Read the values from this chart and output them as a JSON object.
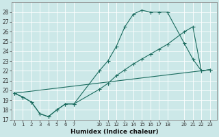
{
  "xlabel": "Humidex (Indice chaleur)",
  "bg_color": "#cce8e8",
  "grid_color": "#ffffff",
  "line_color": "#1a6b5e",
  "line1_x": [
    0,
    1,
    2,
    3,
    4,
    5,
    6,
    7,
    10,
    11,
    12,
    13,
    14,
    15,
    16,
    17,
    18,
    20,
    21,
    22,
    23
  ],
  "line1_y": [
    19.7,
    19.3,
    18.8,
    17.6,
    17.3,
    18.0,
    18.6,
    18.6,
    22.0,
    23.0,
    24.5,
    26.5,
    27.8,
    28.2,
    28.0,
    28.0,
    28.0,
    24.8,
    23.2,
    22.0,
    22.1
  ],
  "line2_x": [
    0,
    1,
    2,
    3,
    4,
    5,
    6,
    7,
    10,
    11,
    12,
    13,
    14,
    15,
    16,
    17,
    18,
    20,
    21,
    22,
    23
  ],
  "line2_y": [
    19.7,
    19.3,
    18.8,
    17.6,
    17.3,
    18.0,
    18.6,
    18.6,
    20.1,
    20.7,
    21.5,
    22.1,
    22.7,
    23.2,
    23.7,
    24.2,
    24.7,
    26.0,
    26.5,
    22.0,
    22.1
  ],
  "line3_x": [
    0,
    23
  ],
  "line3_y": [
    19.7,
    22.1
  ],
  "xtick_positions": [
    0,
    1,
    2,
    3,
    4,
    5,
    6,
    7,
    10,
    11,
    12,
    13,
    14,
    15,
    16,
    17,
    18,
    20,
    21,
    22,
    23
  ],
  "xtick_labels": [
    "0",
    "1",
    "2",
    "3",
    "4",
    "5",
    "6",
    "7",
    "10",
    "11",
    "12",
    "13",
    "14",
    "15",
    "16",
    "17",
    "18",
    "20",
    "21",
    "22",
    "23"
  ],
  "ylim": [
    17,
    29
  ],
  "xlim": [
    -0.3,
    23.8
  ],
  "yticks": [
    17,
    18,
    19,
    20,
    21,
    22,
    23,
    24,
    25,
    26,
    27,
    28
  ]
}
